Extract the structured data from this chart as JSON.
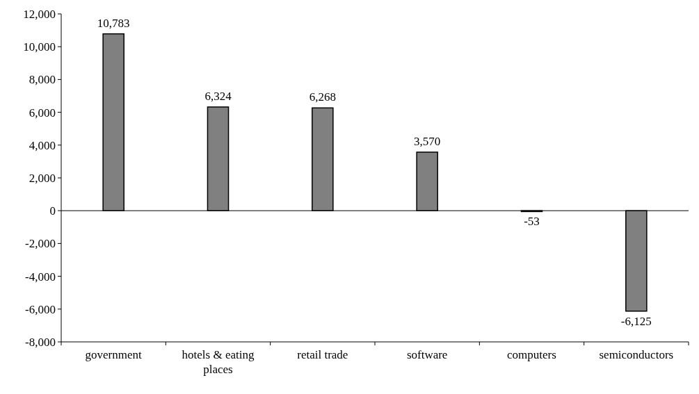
{
  "chart_data": {
    "type": "bar",
    "categories": [
      "government",
      "hotels & eating places",
      "retail trade",
      "software",
      "computers",
      "semiconductors"
    ],
    "values": [
      10783,
      6324,
      6268,
      3570,
      -53,
      -6125
    ],
    "value_labels": [
      "10,783",
      "6,324",
      "6,268",
      "3,570",
      "-53",
      "-6,125"
    ],
    "color": "#808080",
    "ylim": [
      -8000,
      12000
    ],
    "yticks": [
      {
        "value": -8000,
        "label": "-8,000"
      },
      {
        "value": -6000,
        "label": "-6,000"
      },
      {
        "value": -4000,
        "label": "-4,000"
      },
      {
        "value": -2000,
        "label": "-2,000"
      },
      0,
      {
        "value": 2000,
        "label": "2,000"
      },
      {
        "value": 4000,
        "label": "4,000"
      },
      {
        "value": 6000,
        "label": "6,000"
      },
      {
        "value": 8000,
        "label": "8,000"
      },
      {
        "value": 10000,
        "label": "10,000"
      },
      {
        "value": 12000,
        "label": "12,000"
      }
    ],
    "legend": false
  }
}
